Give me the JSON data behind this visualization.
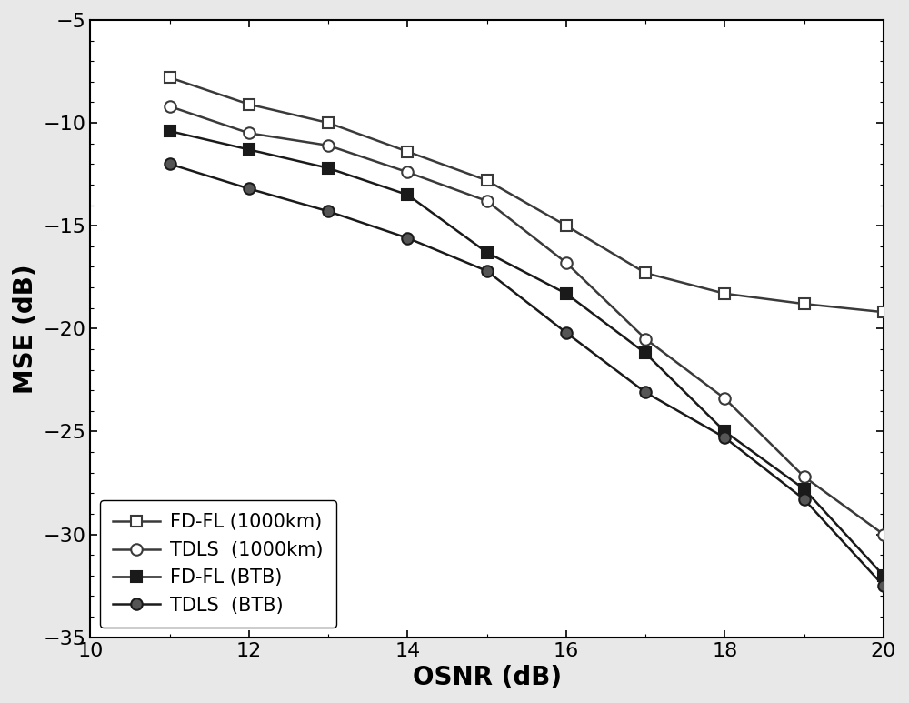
{
  "title": "",
  "xlabel": "OSNR (dB)",
  "ylabel": "MSE (dB)",
  "xlim": [
    10,
    20
  ],
  "ylim": [
    -35,
    -5
  ],
  "xticks": [
    10,
    12,
    14,
    16,
    18,
    20
  ],
  "yticks": [
    -35,
    -30,
    -25,
    -20,
    -15,
    -10,
    -5
  ],
  "series": [
    {
      "label": "FD-FL (1000km)",
      "x": [
        11,
        12,
        13,
        14,
        15,
        16,
        17,
        18,
        19,
        20
      ],
      "y": [
        -7.8,
        -9.1,
        -10.0,
        -11.4,
        -12.8,
        -15.0,
        -17.3,
        -18.3,
        -18.8,
        -19.2
      ],
      "color": "#3a3a3a",
      "marker": "s",
      "markerfacecolor": "white",
      "markeredgecolor": "#3a3a3a",
      "markersize": 9,
      "linewidth": 1.8,
      "markeredgewidth": 1.5
    },
    {
      "label": "TDLS  (1000km)",
      "x": [
        11,
        12,
        13,
        14,
        15,
        16,
        17,
        18,
        19,
        20
      ],
      "y": [
        -9.2,
        -10.5,
        -11.1,
        -12.4,
        -13.8,
        -16.8,
        -20.5,
        -23.4,
        -27.2,
        -30.0
      ],
      "color": "#3a3a3a",
      "marker": "o",
      "markerfacecolor": "white",
      "markeredgecolor": "#3a3a3a",
      "markersize": 9,
      "linewidth": 1.8,
      "markeredgewidth": 1.5
    },
    {
      "label": "FD-FL (BTB)",
      "x": [
        11,
        12,
        13,
        14,
        15,
        16,
        17,
        18,
        19,
        20
      ],
      "y": [
        -10.4,
        -11.3,
        -12.2,
        -13.5,
        -16.3,
        -18.3,
        -21.2,
        -25.0,
        -27.8,
        -32.0
      ],
      "color": "#1a1a1a",
      "marker": "s",
      "markerfacecolor": "#1a1a1a",
      "markeredgecolor": "#1a1a1a",
      "markersize": 9,
      "linewidth": 1.8,
      "markeredgewidth": 1.5
    },
    {
      "label": "TDLS  (BTB)",
      "x": [
        11,
        12,
        13,
        14,
        15,
        16,
        17,
        18,
        19,
        20
      ],
      "y": [
        -12.0,
        -13.2,
        -14.3,
        -15.6,
        -17.2,
        -20.2,
        -23.1,
        -25.3,
        -28.3,
        -32.5
      ],
      "color": "#1a1a1a",
      "marker": "o",
      "markerfacecolor": "#555555",
      "markeredgecolor": "#1a1a1a",
      "markersize": 9,
      "linewidth": 1.8,
      "markeredgewidth": 1.5
    }
  ],
  "legend_loc": "lower left",
  "xlabel_fontsize": 20,
  "ylabel_fontsize": 20,
  "tick_fontsize": 16,
  "legend_fontsize": 15,
  "background_color": "#e8e8e8",
  "plot_bg_color": "#ffffff"
}
